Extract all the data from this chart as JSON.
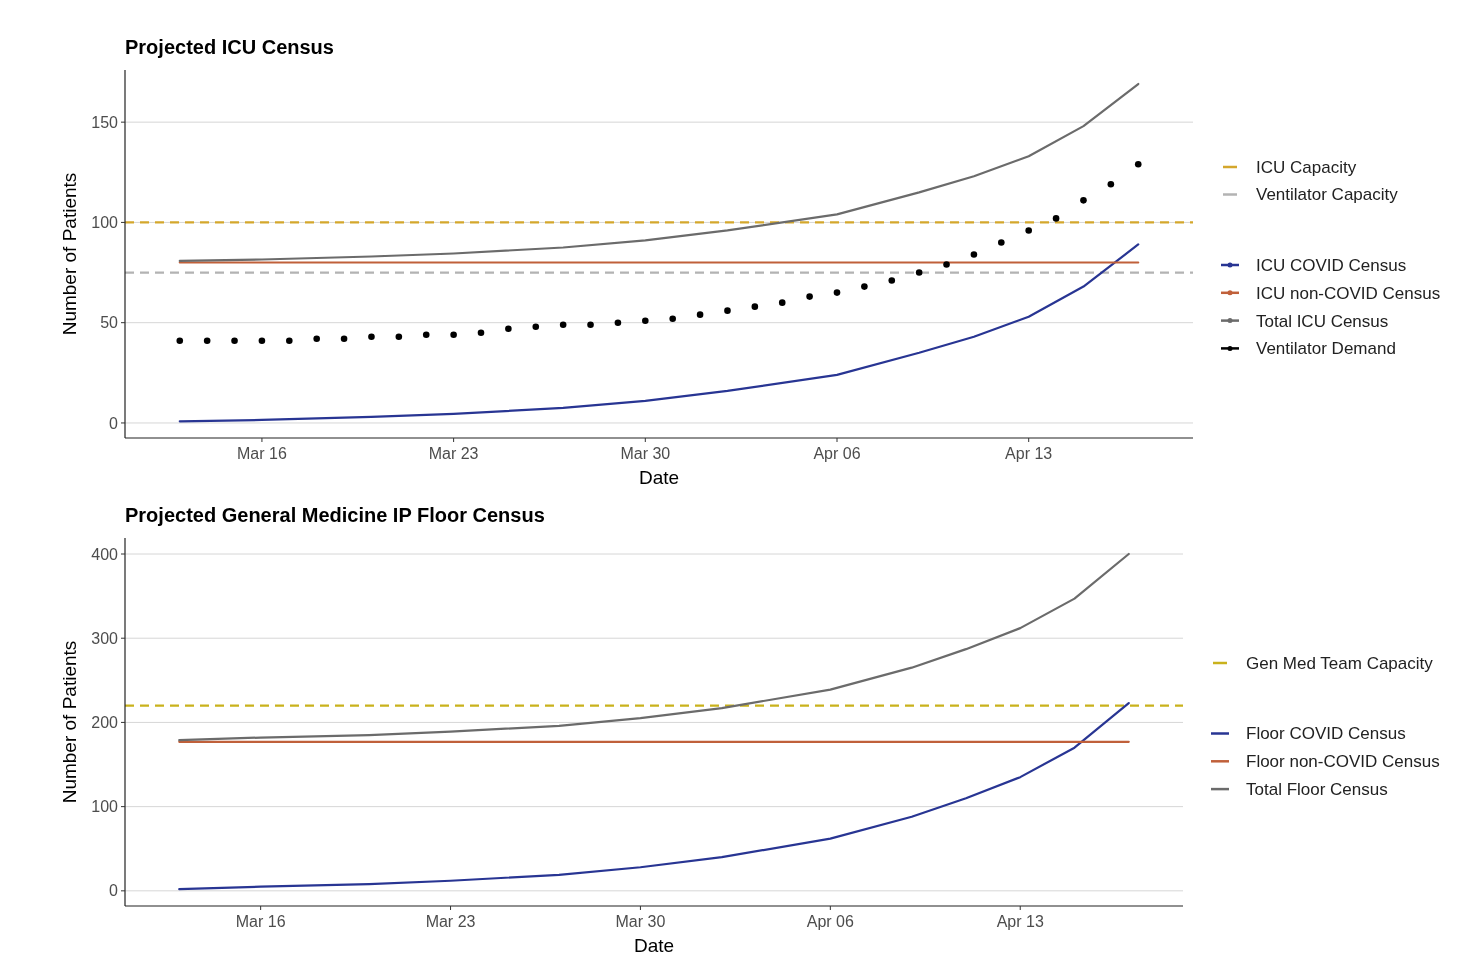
{
  "chart_data": [
    {
      "type": "line",
      "title": "Projected ICU Census",
      "xlabel": "Date",
      "ylabel": "Number of Patients",
      "xlim": [
        "--03-11",
        "--04-19"
      ],
      "ylim": [
        -7.5,
        176
      ],
      "yticks": [
        0,
        50,
        100,
        150
      ],
      "xticks": [
        {
          "value": "--03-16",
          "label": "Mar 16"
        },
        {
          "value": "--03-23",
          "label": "Mar 23"
        },
        {
          "value": "--03-30",
          "label": "Mar 30"
        },
        {
          "value": "--04-06",
          "label": "Apr 06"
        },
        {
          "value": "--04-13",
          "label": "Apr 13"
        }
      ],
      "grid": "y",
      "legend": "right",
      "ref_lines": [
        {
          "axis": "y",
          "value": 100,
          "label": "ICU Capacity",
          "color": "#d4a72c",
          "line_style": "dashed"
        },
        {
          "axis": "y",
          "value": 75,
          "label": "Ventilator Capacity",
          "color": "#b3b3b3",
          "line_style": "dashed"
        }
      ],
      "series": [
        {
          "name": "ICU COVID Census",
          "color": "#283593",
          "x": [
            "--03-13",
            "--03-16",
            "--03-20",
            "--03-23",
            "--03-27",
            "--03-30",
            "--04-02",
            "--04-06",
            "--04-09",
            "--04-11",
            "--04-13",
            "--04-15",
            "--04-17"
          ],
          "values": [
            0.8,
            1.5,
            3,
            4.5,
            7.5,
            11,
            16,
            24,
            35,
            43,
            53,
            68,
            89
          ]
        },
        {
          "name": "ICU non-COVID Census",
          "color": "#c0603a",
          "x": [
            "--03-13",
            "--04-17"
          ],
          "values": [
            80,
            80
          ]
        },
        {
          "name": "Total ICU Census",
          "color": "#6b6b6b",
          "x": [
            "--03-13",
            "--03-16",
            "--03-20",
            "--03-23",
            "--03-27",
            "--03-30",
            "--04-02",
            "--04-06",
            "--04-09",
            "--04-11",
            "--04-13",
            "--04-15",
            "--04-17"
          ],
          "values": [
            80.8,
            81.5,
            83,
            84.5,
            87.5,
            91,
            96,
            104,
            115,
            123,
            133,
            148,
            169
          ]
        },
        {
          "name": "Ventilator Demand",
          "type": "scatter",
          "marker": "circle",
          "color": "#000000",
          "x": [
            "--03-13",
            "--03-14",
            "--03-15",
            "--03-16",
            "--03-17",
            "--03-18",
            "--03-19",
            "--03-20",
            "--03-21",
            "--03-22",
            "--03-23",
            "--03-24",
            "--03-25",
            "--03-26",
            "--03-27",
            "--03-28",
            "--03-29",
            "--03-30",
            "--03-31",
            "--04-01",
            "--04-02",
            "--04-03",
            "--04-04",
            "--04-05",
            "--04-06",
            "--04-07",
            "--04-08",
            "--04-09",
            "--04-10",
            "--04-11",
            "--04-12",
            "--04-13",
            "--04-14",
            "--04-15",
            "--04-16",
            "--04-17"
          ],
          "values": [
            41,
            41,
            41,
            41,
            41,
            42,
            42,
            43,
            43,
            44,
            44,
            45,
            47,
            48,
            49,
            49,
            50,
            51,
            52,
            54,
            56,
            58,
            60,
            63,
            65,
            68,
            71,
            75,
            79,
            84,
            90,
            96,
            102,
            111,
            119,
            129
          ]
        }
      ]
    },
    {
      "type": "line",
      "title": "Projected General Medicine IP Floor Census",
      "xlabel": "Date",
      "ylabel": "Number of Patients",
      "xlim": [
        "--03-11",
        "--04-19"
      ],
      "ylim": [
        -18,
        419
      ],
      "yticks": [
        0,
        100,
        200,
        300,
        400
      ],
      "xticks": [
        {
          "value": "--03-16",
          "label": "Mar 16"
        },
        {
          "value": "--03-23",
          "label": "Mar 23"
        },
        {
          "value": "--03-30",
          "label": "Mar 30"
        },
        {
          "value": "--04-06",
          "label": "Apr 06"
        },
        {
          "value": "--04-13",
          "label": "Apr 13"
        }
      ],
      "grid": "y",
      "legend": "right",
      "ref_lines": [
        {
          "axis": "y",
          "value": 220,
          "label": "Gen Med Team Capacity",
          "color": "#c9b21c",
          "line_style": "dashed"
        }
      ],
      "series": [
        {
          "name": "Floor COVID Census",
          "color": "#283593",
          "x": [
            "--03-13",
            "--03-16",
            "--03-20",
            "--03-23",
            "--03-27",
            "--03-30",
            "--04-02",
            "--04-06",
            "--04-09",
            "--04-11",
            "--04-13",
            "--04-15",
            "--04-17"
          ],
          "values": [
            2,
            5,
            8,
            12,
            19,
            28,
            40,
            62,
            88,
            110,
            135,
            170,
            223
          ]
        },
        {
          "name": "Floor non-COVID Census",
          "color": "#c0603a",
          "x": [
            "--03-13",
            "--04-17"
          ],
          "values": [
            177,
            177
          ]
        },
        {
          "name": "Total Floor Census",
          "color": "#6b6b6b",
          "x": [
            "--03-13",
            "--03-16",
            "--03-20",
            "--03-23",
            "--03-27",
            "--03-30",
            "--04-02",
            "--04-06",
            "--04-09",
            "--04-11",
            "--04-13",
            "--04-15",
            "--04-17"
          ],
          "values": [
            179,
            182,
            185,
            189,
            196,
            205,
            217,
            239,
            265,
            287,
            312,
            347,
            400
          ]
        }
      ]
    }
  ]
}
